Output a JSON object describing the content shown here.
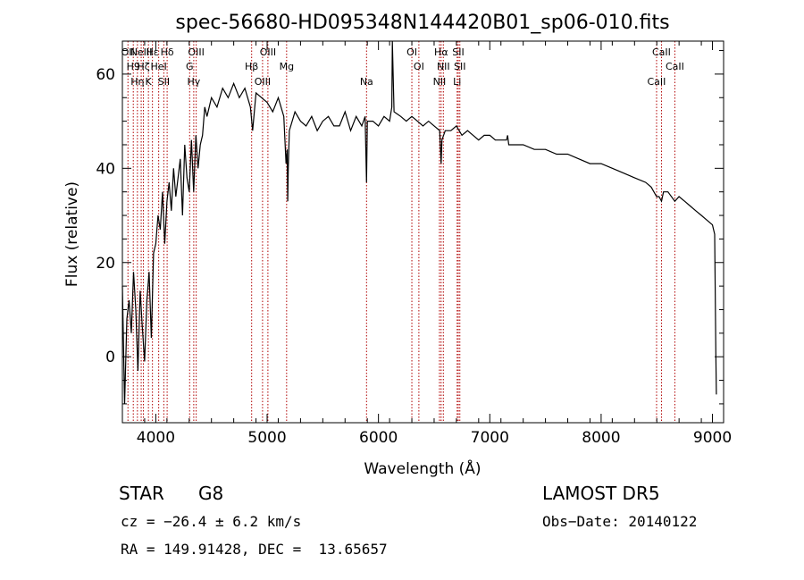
{
  "chart_data": {
    "type": "line",
    "title": "spec-56680-HD095348N144420B01_sp06-010.fits",
    "xlabel": "Wavelength (Å)",
    "ylabel": "Flux (relative)",
    "xlim": [
      3700,
      9100
    ],
    "ylim": [
      -14,
      67
    ],
    "xticks": [
      4000,
      5000,
      6000,
      7000,
      8000,
      9000
    ],
    "yticks": [
      0,
      20,
      40,
      60
    ],
    "grid": false,
    "line_color": "#000000",
    "marker_color": "#b00000",
    "series": [
      {
        "x": [
          3700,
          3720,
          3740,
          3760,
          3780,
          3800,
          3820,
          3840,
          3860,
          3880,
          3900,
          3920,
          3940,
          3960,
          3980,
          4000,
          4020,
          4040,
          4060,
          4080,
          4100,
          4120,
          4140,
          4160,
          4180,
          4200,
          4220,
          4240,
          4260,
          4280,
          4300,
          4320,
          4340,
          4360,
          4380,
          4400,
          4420,
          4440,
          4460,
          4500,
          4550,
          4600,
          4650,
          4700,
          4750,
          4800,
          4850,
          4870,
          4900,
          4950,
          5000,
          5050,
          5100,
          5150,
          5170,
          5180,
          5185,
          5190,
          5200,
          5250,
          5300,
          5350,
          5400,
          5450,
          5500,
          5550,
          5600,
          5650,
          5700,
          5750,
          5800,
          5850,
          5880,
          5893,
          5900,
          5950,
          6000,
          6050,
          6100,
          6120,
          6125,
          6140,
          6200,
          6250,
          6300,
          6350,
          6400,
          6450,
          6500,
          6550,
          6563,
          6570,
          6600,
          6650,
          6700,
          6750,
          6800,
          6850,
          6900,
          6950,
          7000,
          7050,
          7100,
          7150,
          7160,
          7170,
          7200,
          7300,
          7400,
          7500,
          7600,
          7700,
          7800,
          7900,
          8000,
          8100,
          8200,
          8300,
          8400,
          8450,
          8498,
          8520,
          8542,
          8560,
          8600,
          8662,
          8700,
          8750,
          8800,
          8850,
          8900,
          8950,
          9000,
          9020,
          9030,
          9035
        ],
        "y": [
          15,
          -10,
          8,
          12,
          5,
          18,
          10,
          -3,
          14,
          6,
          -1,
          12,
          18,
          4,
          22,
          24,
          30,
          27,
          35,
          24,
          33,
          37,
          31,
          40,
          34,
          38,
          42,
          30,
          45,
          38,
          35,
          46,
          35,
          47,
          40,
          45,
          47,
          53,
          51,
          55,
          53,
          57,
          55,
          58,
          55,
          57,
          53,
          48,
          56,
          55,
          54,
          52,
          55,
          51,
          41,
          44,
          33,
          40,
          48,
          52,
          50,
          49,
          51,
          48,
          50,
          51,
          49,
          49,
          52,
          48,
          51,
          49,
          51,
          37,
          50,
          50,
          49,
          51,
          50,
          53,
          67,
          52,
          51,
          50,
          51,
          50,
          49,
          50,
          49,
          48,
          41,
          46,
          48,
          48,
          49,
          47,
          48,
          47,
          46,
          47,
          47,
          46,
          46,
          46,
          47,
          45,
          45,
          45,
          44,
          44,
          43,
          43,
          42,
          41,
          41,
          40,
          39,
          38,
          37,
          36,
          34,
          34,
          33,
          35,
          35,
          33,
          34,
          33,
          32,
          31,
          30,
          29,
          28,
          26,
          1,
          -8
        ]
      }
    ],
    "line_markers": [
      {
        "x": 3750,
        "label": "OII"
      },
      {
        "x": 3798,
        "label": "H9"
      },
      {
        "x": 3835,
        "label": "Hη"
      },
      {
        "x": 3869,
        "label": "NeIII"
      },
      {
        "x": 3889,
        "label": "Hζ"
      },
      {
        "x": 3934,
        "label": "K"
      },
      {
        "x": 3970,
        "label": "Hε"
      },
      {
        "x": 4026,
        "label": "HeI"
      },
      {
        "x": 4072,
        "label": "SII"
      },
      {
        "x": 4102,
        "label": "Hδ"
      },
      {
        "x": 4304,
        "label": "G"
      },
      {
        "x": 4341,
        "label": "Hγ"
      },
      {
        "x": 4363,
        "label": "OIII"
      },
      {
        "x": 4861,
        "label": "Hβ"
      },
      {
        "x": 4959,
        "label": "OIII"
      },
      {
        "x": 5007,
        "label": "OIII"
      },
      {
        "x": 5175,
        "label": "Mg"
      },
      {
        "x": 5893,
        "label": "Na"
      },
      {
        "x": 6300,
        "label": "OI"
      },
      {
        "x": 6363,
        "label": "OI"
      },
      {
        "x": 6548,
        "label": "NII"
      },
      {
        "x": 6563,
        "label": "Hα"
      },
      {
        "x": 6583,
        "label": "NII"
      },
      {
        "x": 6707,
        "label": "Li"
      },
      {
        "x": 6717,
        "label": "SII"
      },
      {
        "x": 6731,
        "label": "SII"
      },
      {
        "x": 8498,
        "label": "CaII"
      },
      {
        "x": 8542,
        "label": "CaII"
      },
      {
        "x": 8662,
        "label": "CaII"
      }
    ]
  },
  "info": {
    "class": "STAR",
    "subclass": "G8",
    "survey": "LAMOST DR5",
    "cz": "cz = −26.4 ± 6.2 km/s",
    "obs_date": "Obs−Date: 20140122",
    "radec": "RA = 149.91428, DEC =  13.65657"
  }
}
